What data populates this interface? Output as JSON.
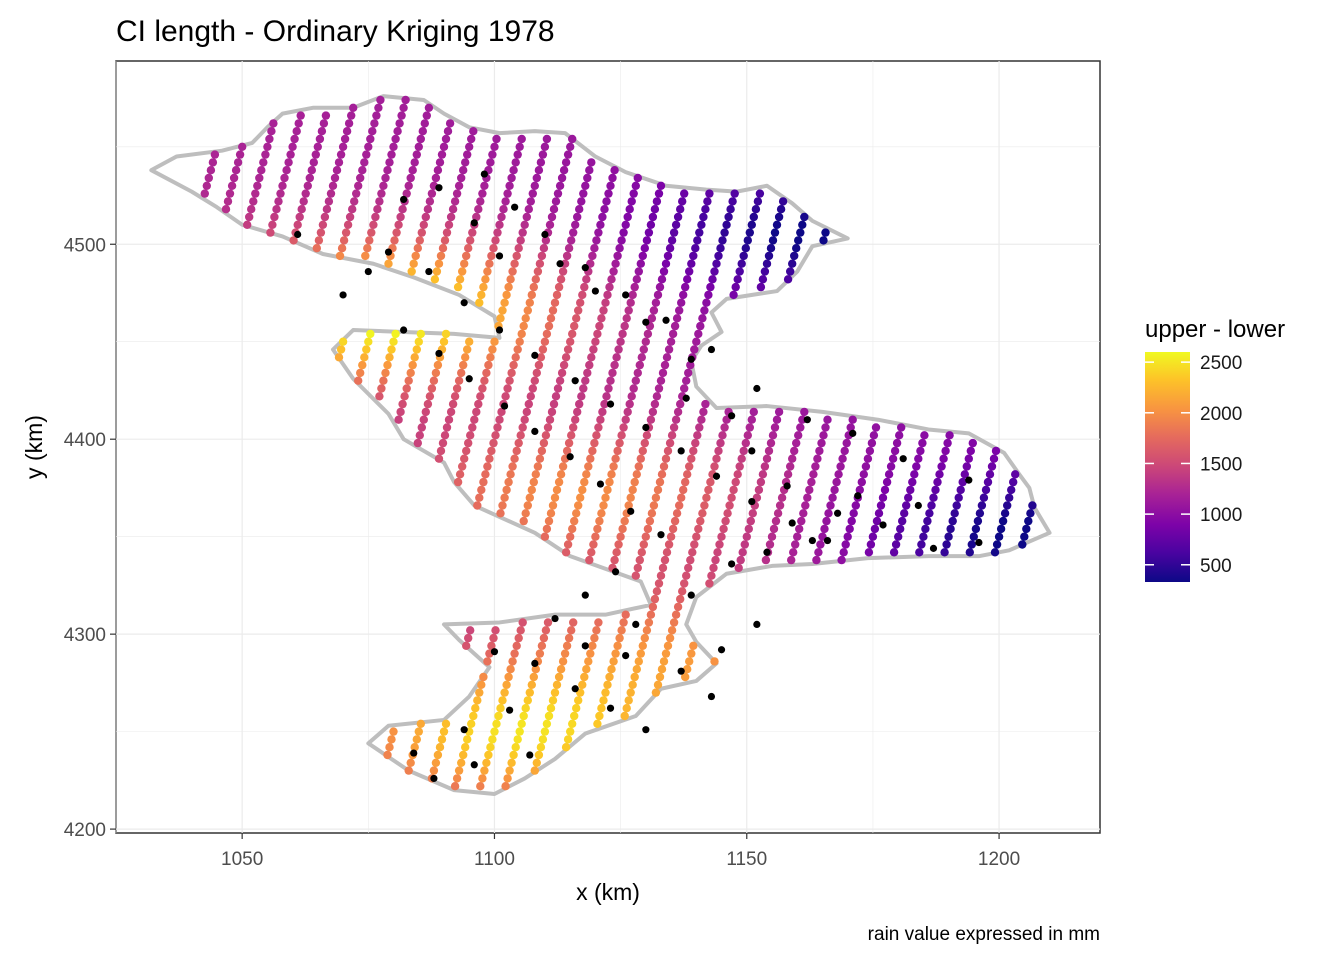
{
  "chart_data": {
    "type": "scatter",
    "title": "CI length - Ordinary Kriging 1978",
    "xlabel": "x (km)",
    "ylabel": "y (km)",
    "caption": "rain value expressed in mm",
    "xlim": [
      1025,
      1220
    ],
    "ylim": [
      4198,
      4594
    ],
    "x_ticks": [
      1050,
      1100,
      1150,
      1200
    ],
    "y_ticks": [
      4200,
      4300,
      4400,
      4500
    ],
    "x_tick_labels": [
      "1050",
      "1100",
      "1150",
      "1200"
    ],
    "y_tick_labels": [
      "4200",
      "4300",
      "4400",
      "4500"
    ],
    "grid": true,
    "legend": {
      "title": "upper - lower",
      "position": "right",
      "scale": "plasma",
      "range": [
        330,
        2600
      ],
      "ticks": [
        500,
        1000,
        1500,
        2000,
        2500
      ],
      "tick_labels": [
        "2500",
        "2000",
        "1500",
        "1000",
        "500"
      ]
    },
    "boundary": [
      [
        1037,
        4545
      ],
      [
        1046,
        4548
      ],
      [
        1052,
        4552
      ],
      [
        1055,
        4560
      ],
      [
        1058,
        4567
      ],
      [
        1064,
        4570
      ],
      [
        1072,
        4570
      ],
      [
        1078,
        4576
      ],
      [
        1086,
        4574
      ],
      [
        1090,
        4567
      ],
      [
        1095,
        4560
      ],
      [
        1101,
        4557
      ],
      [
        1108,
        4558
      ],
      [
        1114,
        4557
      ],
      [
        1120,
        4545
      ],
      [
        1126,
        4537
      ],
      [
        1134,
        4530
      ],
      [
        1142,
        4528
      ],
      [
        1148,
        4527
      ],
      [
        1154,
        4530
      ],
      [
        1159,
        4521
      ],
      [
        1163,
        4512
      ],
      [
        1170,
        4503
      ],
      [
        1163,
        4499
      ],
      [
        1160,
        4486
      ],
      [
        1156,
        4476
      ],
      [
        1146,
        4472
      ],
      [
        1143,
        4465
      ],
      [
        1145,
        4455
      ],
      [
        1141,
        4448
      ],
      [
        1139,
        4440
      ],
      [
        1140,
        4427
      ],
      [
        1144,
        4416
      ],
      [
        1154,
        4417
      ],
      [
        1165,
        4414
      ],
      [
        1176,
        4410
      ],
      [
        1186,
        4405
      ],
      [
        1194,
        4403
      ],
      [
        1201,
        4393
      ],
      [
        1204,
        4382
      ],
      [
        1206,
        4375
      ],
      [
        1207,
        4365
      ],
      [
        1210,
        4352
      ],
      [
        1202,
        4343
      ],
      [
        1196,
        4340
      ],
      [
        1186,
        4340
      ],
      [
        1174,
        4339
      ],
      [
        1163,
        4336
      ],
      [
        1155,
        4335
      ],
      [
        1146,
        4331
      ],
      [
        1140,
        4319
      ],
      [
        1138,
        4305
      ],
      [
        1140,
        4296
      ],
      [
        1144,
        4285
      ],
      [
        1140,
        4276
      ],
      [
        1133,
        4272
      ],
      [
        1128,
        4258
      ],
      [
        1118,
        4249
      ],
      [
        1112,
        4236
      ],
      [
        1106,
        4226
      ],
      [
        1100,
        4218
      ],
      [
        1092,
        4220
      ],
      [
        1083,
        4230
      ],
      [
        1075,
        4244
      ],
      [
        1079,
        4253
      ],
      [
        1090,
        4256
      ],
      [
        1095,
        4268
      ],
      [
        1099,
        4283
      ],
      [
        1093,
        4297
      ],
      [
        1090,
        4305
      ],
      [
        1101,
        4306
      ],
      [
        1112,
        4310
      ],
      [
        1122,
        4310
      ],
      [
        1131,
        4315
      ],
      [
        1129,
        4327
      ],
      [
        1115,
        4340
      ],
      [
        1108,
        4352
      ],
      [
        1096,
        4366
      ],
      [
        1092,
        4378
      ],
      [
        1090,
        4388
      ],
      [
        1082,
        4400
      ],
      [
        1079,
        4413
      ],
      [
        1072,
        4431
      ],
      [
        1068,
        4446
      ],
      [
        1072,
        4456
      ],
      [
        1082,
        4455
      ],
      [
        1092,
        4454
      ],
      [
        1101,
        4452
      ],
      [
        1100,
        4463
      ],
      [
        1093,
        4474
      ],
      [
        1084,
        4483
      ],
      [
        1076,
        4490
      ],
      [
        1066,
        4495
      ],
      [
        1058,
        4504
      ],
      [
        1050,
        4510
      ],
      [
        1045,
        4519
      ],
      [
        1040,
        4527
      ],
      [
        1032,
        4538
      ]
    ],
    "grid_spacing": {
      "dx": 5,
      "dy": 4
    },
    "value_model": {
      "min": 330,
      "max": 2600,
      "hotspots": [
        {
          "x": 1078,
          "y": 4465,
          "value": 2600
        },
        {
          "x": 1104,
          "y": 4248,
          "value": 2350
        },
        {
          "x": 1118,
          "y": 4372,
          "value": 1950
        },
        {
          "x": 1140,
          "y": 4292,
          "value": 1900
        }
      ],
      "coldspots": [
        {
          "x": 1160,
          "y": 4505,
          "value": 330
        },
        {
          "x": 1205,
          "y": 4350,
          "value": 350
        }
      ]
    },
    "stations": [
      [
        1061,
        4505
      ],
      [
        1082,
        4523
      ],
      [
        1089,
        4529
      ],
      [
        1096,
        4511
      ],
      [
        1101,
        4494
      ],
      [
        1113,
        4490
      ],
      [
        1120,
        4476
      ],
      [
        1130,
        4460
      ],
      [
        1139,
        4441
      ],
      [
        1138,
        4421
      ],
      [
        1147,
        4412
      ],
      [
        1151,
        4394
      ],
      [
        1158,
        4376
      ],
      [
        1168,
        4362
      ],
      [
        1177,
        4356
      ],
      [
        1187,
        4344
      ],
      [
        1196,
        4347
      ],
      [
        1082,
        4456
      ],
      [
        1089,
        4444
      ],
      [
        1095,
        4431
      ],
      [
        1102,
        4417
      ],
      [
        1108,
        4404
      ],
      [
        1115,
        4391
      ],
      [
        1121,
        4377
      ],
      [
        1127,
        4363
      ],
      [
        1133,
        4351
      ],
      [
        1124,
        4332
      ],
      [
        1118,
        4320
      ],
      [
        1112,
        4308
      ],
      [
        1100,
        4291
      ],
      [
        1108,
        4285
      ],
      [
        1116,
        4272
      ],
      [
        1123,
        4262
      ],
      [
        1130,
        4251
      ],
      [
        1107,
        4238
      ],
      [
        1096,
        4233
      ],
      [
        1088,
        4226
      ],
      [
        1084,
        4239
      ],
      [
        1094,
        4251
      ],
      [
        1103,
        4261
      ],
      [
        1118,
        4294
      ],
      [
        1128,
        4305
      ],
      [
        1139,
        4320
      ],
      [
        1147,
        4336
      ],
      [
        1154,
        4342
      ],
      [
        1163,
        4348
      ],
      [
        1172,
        4371
      ],
      [
        1184,
        4366
      ],
      [
        1194,
        4379
      ],
      [
        1181,
        4390
      ],
      [
        1171,
        4403
      ],
      [
        1162,
        4410
      ],
      [
        1152,
        4426
      ],
      [
        1143,
        4446
      ],
      [
        1134,
        4461
      ],
      [
        1126,
        4474
      ],
      [
        1118,
        4488
      ],
      [
        1110,
        4505
      ],
      [
        1104,
        4519
      ],
      [
        1098,
        4536
      ],
      [
        1070,
        4474
      ],
      [
        1075,
        4486
      ],
      [
        1079,
        4496
      ],
      [
        1087,
        4486
      ],
      [
        1094,
        4470
      ],
      [
        1101,
        4456
      ],
      [
        1108,
        4443
      ],
      [
        1116,
        4430
      ],
      [
        1123,
        4418
      ],
      [
        1130,
        4406
      ],
      [
        1137,
        4394
      ],
      [
        1144,
        4381
      ],
      [
        1151,
        4368
      ],
      [
        1159,
        4357
      ],
      [
        1166,
        4348
      ],
      [
        1152,
        4305
      ],
      [
        1145,
        4292
      ],
      [
        1137,
        4281
      ],
      [
        1143,
        4268
      ],
      [
        1126,
        4289
      ]
    ]
  }
}
